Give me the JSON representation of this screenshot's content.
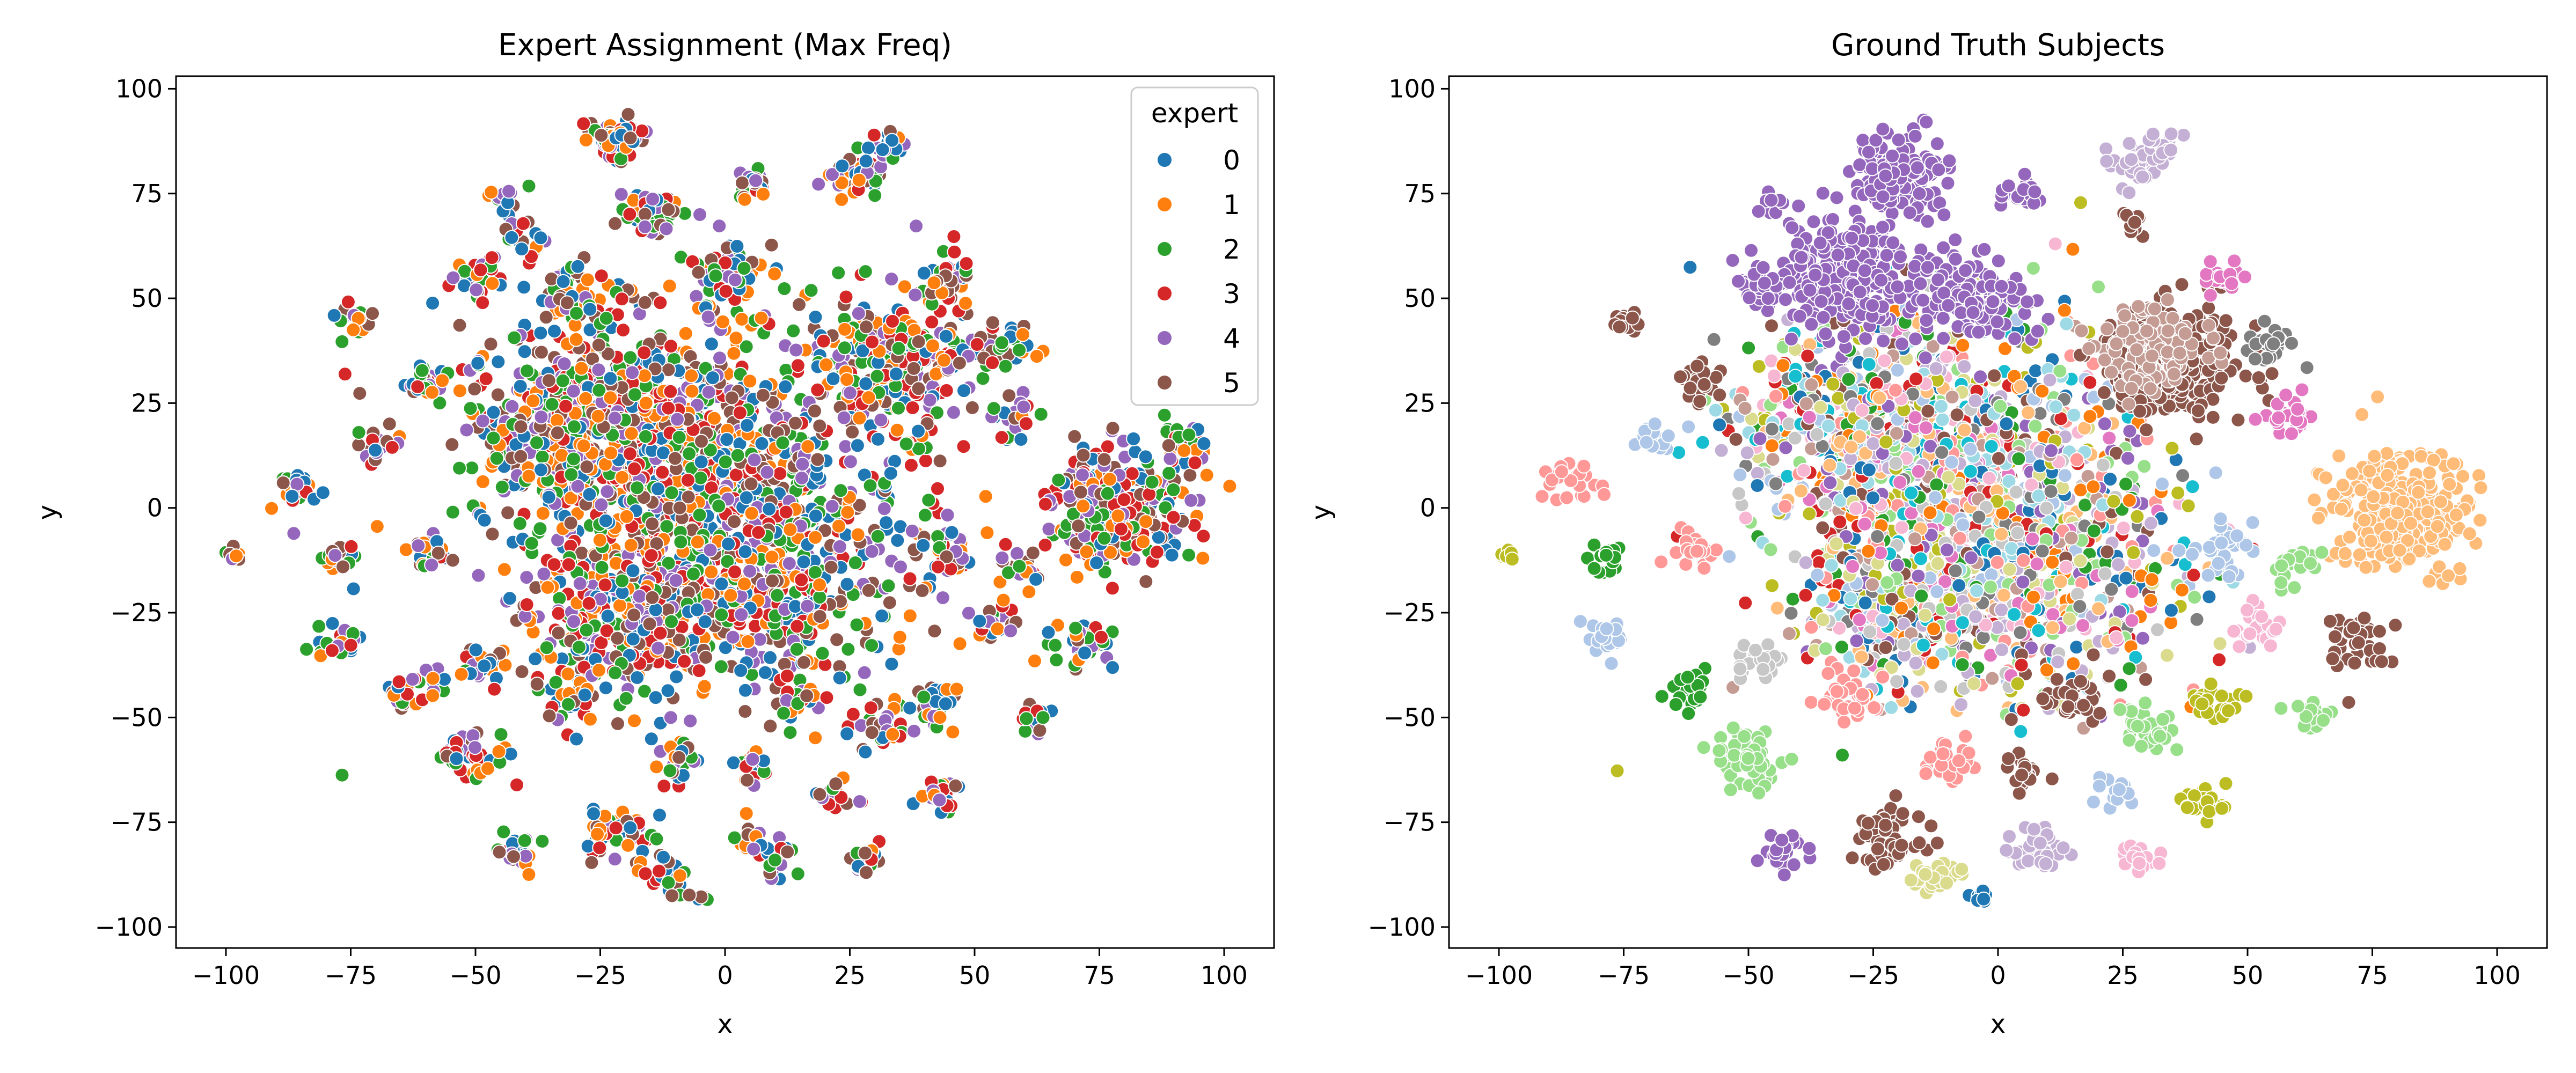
{
  "chart_data": [
    {
      "type": "scatter",
      "title": "Expert Assignment (Max Freq)",
      "xlabel": "x",
      "ylabel": "y",
      "xlim": [
        -110,
        110
      ],
      "ylim": [
        -105,
        103
      ],
      "xticks": [
        -100,
        -75,
        -50,
        -25,
        0,
        25,
        50,
        75,
        100
      ],
      "yticks": [
        -100,
        -75,
        -50,
        -25,
        0,
        25,
        50,
        75,
        100
      ],
      "grid": false,
      "legend": {
        "title": "expert",
        "placement": "top-right",
        "entries": [
          {
            "name": "0",
            "color": "#1f77b4"
          },
          {
            "name": "1",
            "color": "#ff7f0e"
          },
          {
            "name": "2",
            "color": "#2ca02c"
          },
          {
            "name": "3",
            "color": "#d62728"
          },
          {
            "name": "4",
            "color": "#9467bd"
          },
          {
            "name": "5",
            "color": "#8c564b"
          }
        ]
      },
      "color_mode": "expert",
      "clusters": [
        {
          "x": -10,
          "y": 10,
          "r": 38,
          "n": 900
        },
        {
          "x": 10,
          "y": -15,
          "r": 30,
          "n": 500
        },
        {
          "x": -30,
          "y": 20,
          "r": 22,
          "n": 320
        },
        {
          "x": 35,
          "y": 35,
          "r": 18,
          "n": 240
        },
        {
          "x": -20,
          "y": -25,
          "r": 20,
          "n": 260
        },
        {
          "x": 80,
          "y": 0,
          "r": 14,
          "n": 260
        },
        {
          "x": 75,
          "y": 0,
          "r": 9,
          "n": 80
        },
        {
          "x": -22,
          "y": 88,
          "r": 5,
          "n": 60
        },
        {
          "x": -14,
          "y": 70,
          "r": 6,
          "n": 50
        },
        {
          "x": 27,
          "y": 80,
          "r": 6,
          "n": 60
        },
        {
          "x": 33,
          "y": 87,
          "r": 3,
          "n": 20
        },
        {
          "x": 5,
          "y": 77,
          "r": 4,
          "n": 25
        },
        {
          "x": -45,
          "y": 73,
          "r": 3,
          "n": 12
        },
        {
          "x": -50,
          "y": 55,
          "r": 5,
          "n": 30
        },
        {
          "x": 45,
          "y": 55,
          "r": 5,
          "n": 30
        },
        {
          "x": -75,
          "y": 44,
          "r": 4,
          "n": 15
        },
        {
          "x": 58,
          "y": 22,
          "r": 5,
          "n": 25
        },
        {
          "x": -60,
          "y": 30,
          "r": 5,
          "n": 25
        },
        {
          "x": -85,
          "y": 5,
          "r": 5,
          "n": 25
        },
        {
          "x": -98,
          "y": -11,
          "r": 2,
          "n": 8
        },
        {
          "x": -78,
          "y": -12,
          "r": 4,
          "n": 20
        },
        {
          "x": -78,
          "y": -32,
          "r": 5,
          "n": 25
        },
        {
          "x": -62,
          "y": -43,
          "r": 5,
          "n": 25
        },
        {
          "x": -48,
          "y": -37,
          "r": 5,
          "n": 25
        },
        {
          "x": -50,
          "y": -60,
          "r": 7,
          "n": 50
        },
        {
          "x": -42,
          "y": -82,
          "r": 5,
          "n": 25
        },
        {
          "x": -22,
          "y": -78,
          "r": 7,
          "n": 50
        },
        {
          "x": -12,
          "y": -88,
          "r": 5,
          "n": 25
        },
        {
          "x": 8,
          "y": -82,
          "r": 6,
          "n": 35
        },
        {
          "x": 28,
          "y": -84,
          "r": 4,
          "n": 20
        },
        {
          "x": 5,
          "y": -63,
          "r": 4,
          "n": 20
        },
        {
          "x": 23,
          "y": -68,
          "r": 4,
          "n": 18
        },
        {
          "x": 42,
          "y": -70,
          "r": 5,
          "n": 25
        },
        {
          "x": 30,
          "y": -52,
          "r": 6,
          "n": 30
        },
        {
          "x": 43,
          "y": -47,
          "r": 5,
          "n": 25
        },
        {
          "x": 62,
          "y": -50,
          "r": 4,
          "n": 18
        },
        {
          "x": 72,
          "y": -32,
          "r": 6,
          "n": 40
        },
        {
          "x": 53,
          "y": -28,
          "r": 5,
          "n": 25
        },
        {
          "x": 45,
          "y": -10,
          "r": 6,
          "n": 30
        },
        {
          "x": 60,
          "y": -15,
          "r": 5,
          "n": 20
        },
        {
          "x": -10,
          "y": -60,
          "r": 5,
          "n": 25
        },
        {
          "x": -30,
          "y": -45,
          "r": 6,
          "n": 30
        },
        {
          "x": 15,
          "y": -45,
          "r": 6,
          "n": 30
        },
        {
          "x": -70,
          "y": 15,
          "r": 4,
          "n": 20
        },
        {
          "x": -60,
          "y": -10,
          "r": 5,
          "n": 25
        },
        {
          "x": 0,
          "y": 55,
          "r": 8,
          "n": 60
        },
        {
          "x": -30,
          "y": 50,
          "r": 8,
          "n": 60
        },
        {
          "x": 55,
          "y": 38,
          "r": 6,
          "n": 30
        },
        {
          "x": 92,
          "y": 15,
          "r": 4,
          "n": 20
        },
        {
          "x": -40,
          "y": 65,
          "r": 4,
          "n": 18
        },
        {
          "x": -5,
          "y": -93,
          "r": 2,
          "n": 6
        },
        {
          "x": -77,
          "y": -63,
          "r": 1,
          "n": 1
        }
      ]
    },
    {
      "type": "scatter",
      "title": "Ground Truth Subjects",
      "xlabel": "x",
      "ylabel": "y",
      "xlim": [
        -110,
        110
      ],
      "ylim": [
        -105,
        103
      ],
      "xticks": [
        -100,
        -75,
        -50,
        -25,
        0,
        25,
        50,
        75,
        100
      ],
      "yticks": [
        -100,
        -75,
        -50,
        -25,
        0,
        25,
        50,
        75,
        100
      ],
      "grid": false,
      "color_mode": "subject",
      "palette": [
        "#1f77b4",
        "#aec7e8",
        "#ff7f0e",
        "#ffbb78",
        "#2ca02c",
        "#98df8a",
        "#d62728",
        "#ff9896",
        "#9467bd",
        "#c5b0d5",
        "#8c564b",
        "#c49c94",
        "#e377c2",
        "#f7b6d2",
        "#7f7f7f",
        "#c7c7c7",
        "#bcbd22",
        "#dbdb8d",
        "#17becf",
        "#9edae5"
      ],
      "clusters": [
        {
          "x": -10,
          "y": 10,
          "r": 38,
          "n": 900,
          "color": "mixed"
        },
        {
          "x": 10,
          "y": -15,
          "r": 30,
          "n": 500,
          "color": "mixed"
        },
        {
          "x": -30,
          "y": 20,
          "r": 22,
          "n": 320,
          "color": "mixed"
        },
        {
          "x": 35,
          "y": 35,
          "r": 14,
          "n": 260,
          "color": "#8c564b"
        },
        {
          "x": 30,
          "y": 38,
          "r": 10,
          "n": 120,
          "color": "#c49c94"
        },
        {
          "x": -20,
          "y": -25,
          "r": 20,
          "n": 260,
          "color": "mixed"
        },
        {
          "x": 80,
          "y": 0,
          "r": 14,
          "n": 300,
          "color": "#ffbb78"
        },
        {
          "x": -20,
          "y": 80,
          "r": 9,
          "n": 140,
          "color": "#9467bd"
        },
        {
          "x": -30,
          "y": 55,
          "r": 14,
          "n": 260,
          "color": "#9467bd"
        },
        {
          "x": -5,
          "y": 50,
          "r": 10,
          "n": 120,
          "color": "#9467bd"
        },
        {
          "x": -48,
          "y": 52,
          "r": 5,
          "n": 30,
          "color": "#9467bd"
        },
        {
          "x": 28,
          "y": 82,
          "r": 5,
          "n": 45,
          "color": "#c5b0d5"
        },
        {
          "x": 33,
          "y": 87,
          "r": 3,
          "n": 15,
          "color": "#c5b0d5"
        },
        {
          "x": 27,
          "y": 68,
          "r": 3,
          "n": 12,
          "color": "#8c564b"
        },
        {
          "x": 58,
          "y": 22,
          "r": 5,
          "n": 25,
          "color": "#e377c2"
        },
        {
          "x": 55,
          "y": 38,
          "r": 5,
          "n": 25,
          "color": "#7f7f7f"
        },
        {
          "x": 45,
          "y": 55,
          "r": 4,
          "n": 20,
          "color": "#e377c2"
        },
        {
          "x": -60,
          "y": 30,
          "r": 5,
          "n": 25,
          "color": "#8c564b"
        },
        {
          "x": -75,
          "y": 44,
          "r": 3,
          "n": 12,
          "color": "#8c564b"
        },
        {
          "x": -85,
          "y": 5,
          "r": 5,
          "n": 25,
          "color": "#ff9896"
        },
        {
          "x": -98,
          "y": -11,
          "r": 2,
          "n": 8,
          "color": "#bcbd22"
        },
        {
          "x": -78,
          "y": -12,
          "r": 4,
          "n": 20,
          "color": "#2ca02c"
        },
        {
          "x": -78,
          "y": -32,
          "r": 5,
          "n": 25,
          "color": "#aec7e8"
        },
        {
          "x": -62,
          "y": -43,
          "r": 5,
          "n": 25,
          "color": "#2ca02c"
        },
        {
          "x": -48,
          "y": -37,
          "r": 5,
          "n": 25,
          "color": "#c7c7c7"
        },
        {
          "x": -50,
          "y": -60,
          "r": 7,
          "n": 50,
          "color": "#98df8a"
        },
        {
          "x": -42,
          "y": -82,
          "r": 5,
          "n": 25,
          "color": "#9467bd"
        },
        {
          "x": -22,
          "y": -78,
          "r": 7,
          "n": 50,
          "color": "#8c564b"
        },
        {
          "x": -12,
          "y": -88,
          "r": 5,
          "n": 25,
          "color": "#dbdb8d"
        },
        {
          "x": -4,
          "y": -93,
          "r": 2,
          "n": 8,
          "color": "#1f77b4"
        },
        {
          "x": 8,
          "y": -82,
          "r": 6,
          "n": 35,
          "color": "#c5b0d5"
        },
        {
          "x": 28,
          "y": -84,
          "r": 4,
          "n": 20,
          "color": "#f7b6d2"
        },
        {
          "x": 5,
          "y": -63,
          "r": 4,
          "n": 20,
          "color": "#8c564b"
        },
        {
          "x": 23,
          "y": -68,
          "r": 4,
          "n": 18,
          "color": "#aec7e8"
        },
        {
          "x": 42,
          "y": -70,
          "r": 5,
          "n": 25,
          "color": "#bcbd22"
        },
        {
          "x": 30,
          "y": -52,
          "r": 6,
          "n": 30,
          "color": "#98df8a"
        },
        {
          "x": 43,
          "y": -47,
          "r": 5,
          "n": 25,
          "color": "#bcbd22"
        },
        {
          "x": 62,
          "y": -50,
          "r": 4,
          "n": 18,
          "color": "#98df8a"
        },
        {
          "x": 72,
          "y": -32,
          "r": 6,
          "n": 40,
          "color": "#8c564b"
        },
        {
          "x": 53,
          "y": -28,
          "r": 5,
          "n": 25,
          "color": "#f7b6d2"
        },
        {
          "x": 45,
          "y": -10,
          "r": 6,
          "n": 30,
          "color": "#aec7e8"
        },
        {
          "x": 60,
          "y": -15,
          "r": 5,
          "n": 20,
          "color": "#98df8a"
        },
        {
          "x": -10,
          "y": -60,
          "r": 5,
          "n": 25,
          "color": "#ff9896"
        },
        {
          "x": -30,
          "y": -45,
          "r": 6,
          "n": 30,
          "color": "#ff9896"
        },
        {
          "x": 15,
          "y": -45,
          "r": 6,
          "n": 30,
          "color": "#8c564b"
        },
        {
          "x": -70,
          "y": 15,
          "r": 4,
          "n": 20,
          "color": "#aec7e8"
        },
        {
          "x": -60,
          "y": -10,
          "r": 5,
          "n": 25,
          "color": "#ff9896"
        },
        {
          "x": 5,
          "y": 75,
          "r": 4,
          "n": 25,
          "color": "#9467bd"
        },
        {
          "x": -45,
          "y": 73,
          "r": 3,
          "n": 10,
          "color": "#9467bd"
        },
        {
          "x": -77,
          "y": -63,
          "r": 1,
          "n": 1,
          "color": "#bcbd22"
        }
      ]
    }
  ]
}
